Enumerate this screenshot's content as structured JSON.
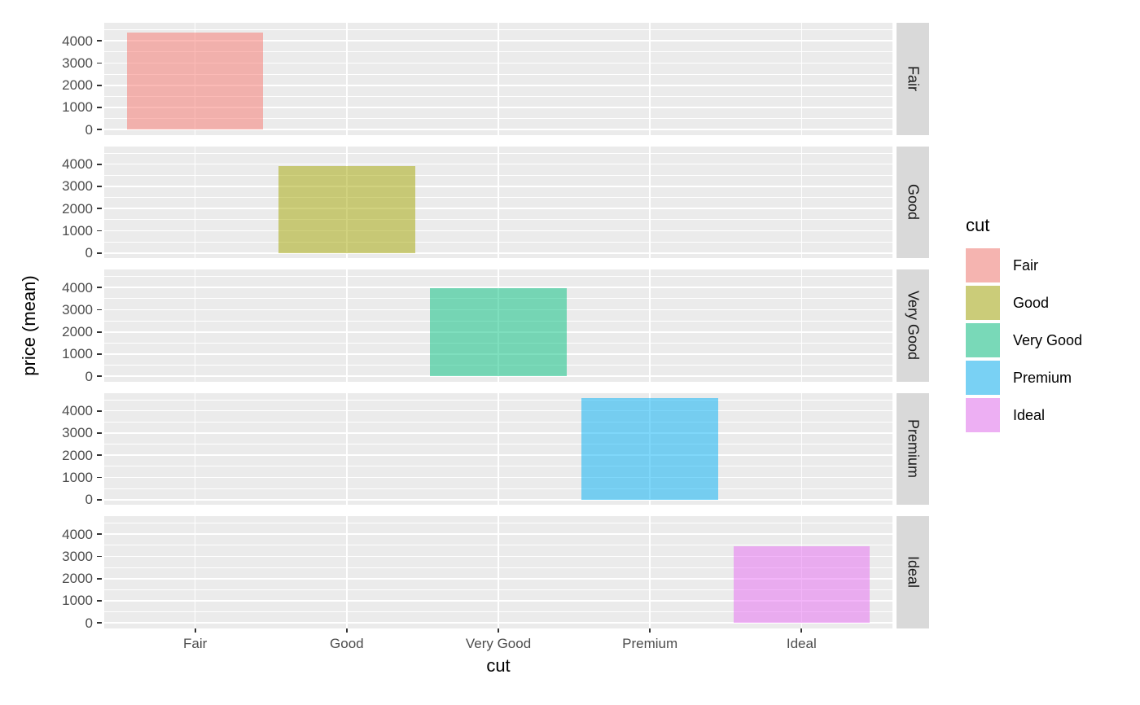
{
  "chart_data": {
    "type": "bar",
    "title": "",
    "xlabel": "cut",
    "ylabel": "price (mean)",
    "categories": [
      "Fair",
      "Good",
      "Very Good",
      "Premium",
      "Ideal"
    ],
    "values": [
      4359,
      3929,
      3982,
      4584,
      3458
    ],
    "ylim": [
      -229,
      4814
    ],
    "y_major_ticks": [
      0,
      1000,
      2000,
      3000,
      4000
    ],
    "y_minor_ticks": [
      500,
      1500,
      2500,
      3500,
      4500
    ],
    "grid": "white major+minor horizontal lines and major vertical lines on grey panel",
    "facets": {
      "variable": "cut",
      "strip_position": "right",
      "labels": [
        "Fair",
        "Good",
        "Very Good",
        "Premium",
        "Ideal"
      ]
    },
    "legend": {
      "title": "cut",
      "position": "right",
      "entries": [
        "Fair",
        "Good",
        "Very Good",
        "Premium",
        "Ideal"
      ]
    },
    "colors": {
      "fill_base": [
        "#F8766D",
        "#A3A500",
        "#00BF7D",
        "#00B0F6",
        "#E76BF3"
      ],
      "fill_alpha": 0.5,
      "panel_background": "#EBEBEB",
      "strip_background": "#D9D9D9",
      "gridline": "#FFFFFF",
      "legend_key_background": "#F2F2F2",
      "tick_label_color": "#4D4D4D",
      "axis_title_color": "#000000",
      "strip_text_color": "#1A1A1A"
    },
    "bar_width_fraction": 0.9
  }
}
